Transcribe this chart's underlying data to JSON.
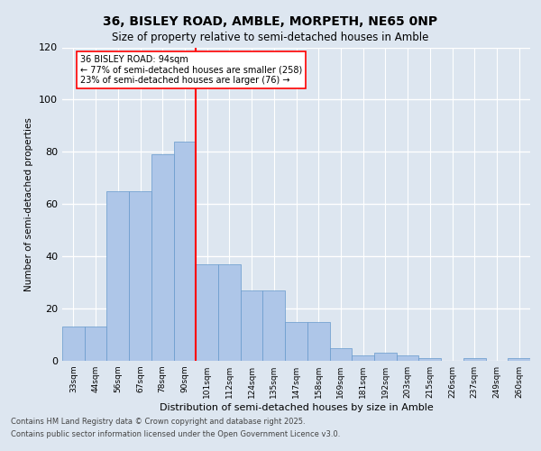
{
  "title_line1": "36, BISLEY ROAD, AMBLE, MORPETH, NE65 0NP",
  "title_line2": "Size of property relative to semi-detached houses in Amble",
  "xlabel": "Distribution of semi-detached houses by size in Amble",
  "ylabel": "Number of semi-detached properties",
  "categories": [
    "33sqm",
    "44sqm",
    "56sqm",
    "67sqm",
    "78sqm",
    "90sqm",
    "101sqm",
    "112sqm",
    "124sqm",
    "135sqm",
    "147sqm",
    "158sqm",
    "169sqm",
    "181sqm",
    "192sqm",
    "203sqm",
    "215sqm",
    "226sqm",
    "237sqm",
    "249sqm",
    "260sqm"
  ],
  "bar_heights": [
    13,
    13,
    65,
    65,
    79,
    84,
    37,
    37,
    27,
    27,
    15,
    15,
    5,
    2,
    3,
    2,
    1,
    0,
    1,
    0,
    1
  ],
  "bar_color": "#aec6e8",
  "bar_edge_color": "#6699cc",
  "annotation_text": "36 BISLEY ROAD: 94sqm\n← 77% of semi-detached houses are smaller (258)\n23% of semi-detached houses are larger (76) →",
  "ylim": [
    0,
    120
  ],
  "yticks": [
    0,
    20,
    40,
    60,
    80,
    100,
    120
  ],
  "bg_color": "#dde6f0",
  "plot_bg_color": "#dde6f0",
  "grid_color": "#ffffff",
  "footer_line1": "Contains HM Land Registry data © Crown copyright and database right 2025.",
  "footer_line2": "Contains public sector information licensed under the Open Government Licence v3.0."
}
